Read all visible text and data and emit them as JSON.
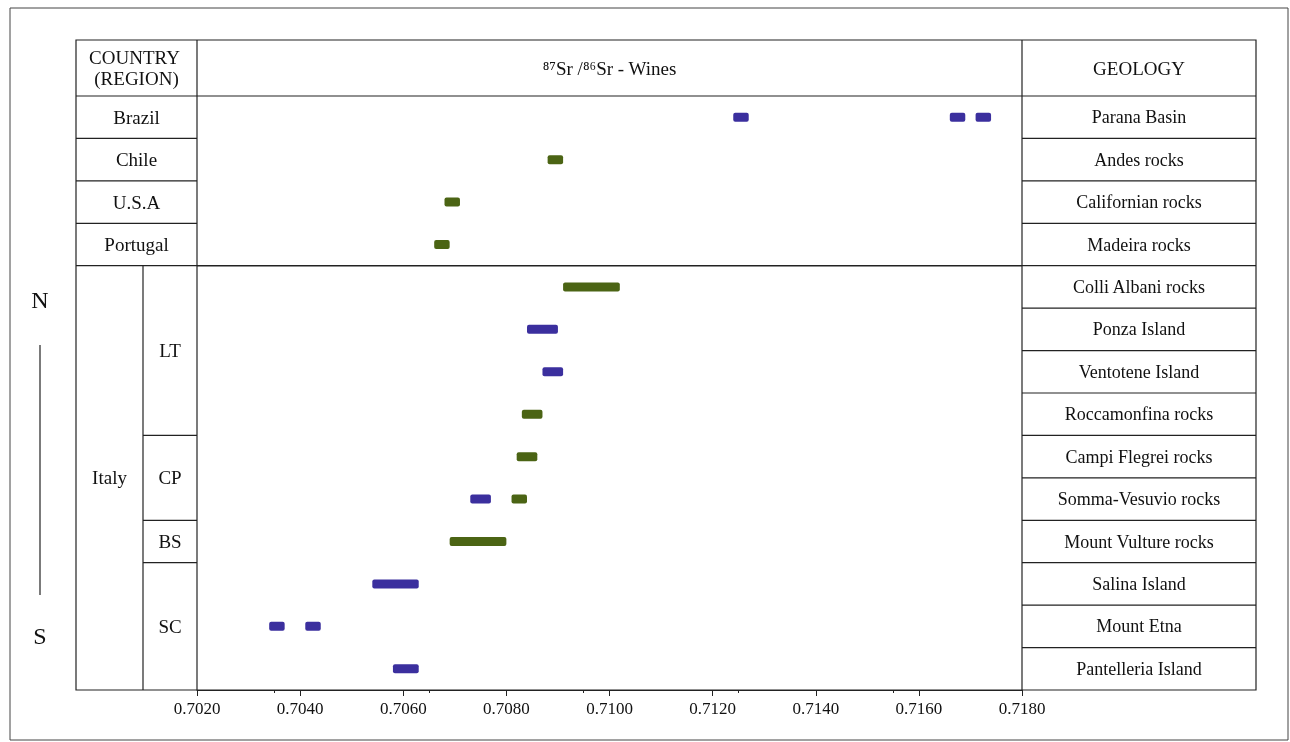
{
  "chart_data": {
    "type": "bar",
    "orientation": "horizontal",
    "title": "⁸⁷Sr /⁸⁶Sr - Wines",
    "ylabel": "GEOLOGY",
    "categories": [
      "Parana Basin",
      "Andes rocks",
      "Californian rocks",
      "Madeira rocks",
      "Colli Albani rocks",
      "Ponza Island",
      "Ventotene Island",
      "Roccamonfina rocks",
      "Campi Flegrei rocks",
      "Somma-Vesuvio rocks",
      "Mount Vulture rocks",
      "Salina Island",
      "Mount Etna",
      "Pantelleria Island"
    ],
    "series": [
      {
        "color": "#3b2f9e",
        "base": [
          0.7124,
          null,
          null,
          null,
          null,
          0.7084,
          0.7087,
          null,
          null,
          0.7073,
          null,
          0.7054,
          0.7034,
          0.7058
        ],
        "values": [
          0.0003,
          null,
          null,
          null,
          null,
          0.0006,
          0.0004,
          null,
          null,
          0.0004,
          null,
          0.0009,
          0.0003,
          0.0005
        ]
      },
      {
        "color": "#3b2f9e",
        "base": [
          0.7166,
          null,
          null,
          null,
          null,
          null,
          null,
          null,
          null,
          null,
          null,
          null,
          0.7041,
          null
        ],
        "values": [
          0.0003,
          null,
          null,
          null,
          null,
          null,
          null,
          null,
          null,
          null,
          null,
          null,
          0.0003,
          null
        ]
      },
      {
        "color": "#3b2f9e",
        "base": [
          0.7171,
          null,
          null,
          null,
          null,
          null,
          null,
          null,
          null,
          null,
          null,
          null,
          null,
          null
        ],
        "values": [
          0.0003,
          null,
          null,
          null,
          null,
          null,
          null,
          null,
          null,
          null,
          null,
          null,
          null,
          null
        ]
      },
      {
        "color": "#4b6414",
        "base": [
          null,
          0.7088,
          0.7068,
          0.7066,
          0.7091,
          null,
          null,
          0.7083,
          0.7082,
          0.7081,
          0.7069,
          null,
          null,
          null
        ],
        "values": [
          null,
          0.0003,
          0.0003,
          0.0003,
          0.0011,
          null,
          null,
          0.0004,
          0.0004,
          0.0003,
          0.0011,
          null,
          null,
          null
        ]
      }
    ],
    "xlim": [
      0.702,
      0.718
    ],
    "xticks": [
      {
        "value": 0.702,
        "label": "0.7020"
      },
      {
        "value": 0.704,
        "label": "0.7040"
      },
      {
        "value": 0.706,
        "label": "0.7060"
      },
      {
        "value": 0.708,
        "label": "0.7080"
      },
      {
        "value": 0.71,
        "label": "0.7100"
      },
      {
        "value": 0.712,
        "label": "0.7120"
      },
      {
        "value": 0.714,
        "label": "0.7140"
      },
      {
        "value": 0.716,
        "label": "0.7160"
      },
      {
        "value": 0.718,
        "label": "0.7180"
      }
    ],
    "annotations": [
      "COUNTRY (REGION)",
      "Brazil",
      "Chile",
      "U.S.A",
      "Portugal",
      "Italy",
      "LT",
      "CP",
      "BS",
      "SC",
      "N",
      "S"
    ]
  }
}
